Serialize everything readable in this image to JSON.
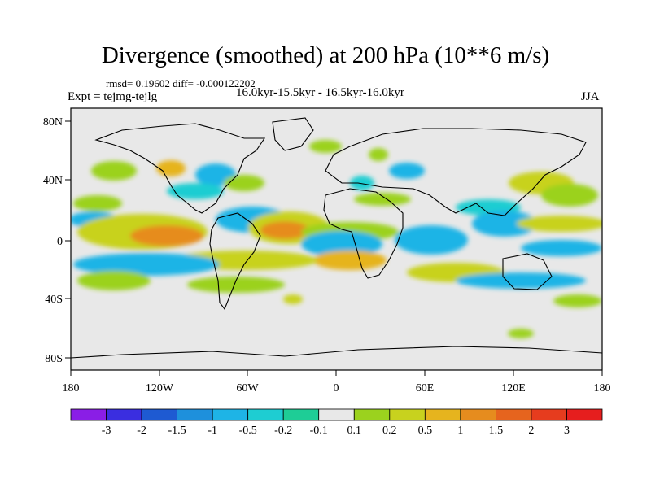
{
  "header": {
    "title": "Divergence (smoothed) at 200 hPa (10**6 m/s)",
    "stats": "rmsd= 0.19602  diff= -0.000122202",
    "expt": "Expt = tejmg-tejlg",
    "period": "16.0kyr-15.5kyr - 16.5kyr-16.0kyr",
    "season": "JJA"
  },
  "axes": {
    "y_ticks": [
      "80N",
      "40N",
      "0",
      "40S",
      "80S"
    ],
    "x_ticks": [
      "180",
      "120W",
      "60W",
      "0",
      "60E",
      "120E",
      "180"
    ]
  },
  "colorbar": {
    "labels": [
      "-3",
      "-2",
      "-1.5",
      "-1",
      "-0.5",
      "-0.2",
      "-0.1",
      "0.1",
      "0.2",
      "0.5",
      "1",
      "1.5",
      "2",
      "3"
    ],
    "colors": [
      "#8a1ee6",
      "#3a2ee0",
      "#1e5ad2",
      "#1e90dc",
      "#1eb4e6",
      "#1ecdd2",
      "#1ecd96",
      "#e8e8e8",
      "#9bd21e",
      "#c8d21e",
      "#e6b41e",
      "#e68c1e",
      "#e6641e",
      "#e63c1e",
      "#e61e1e"
    ]
  },
  "map_colors": {
    "land_outline": "#000000",
    "background": "#e8e8e8"
  }
}
